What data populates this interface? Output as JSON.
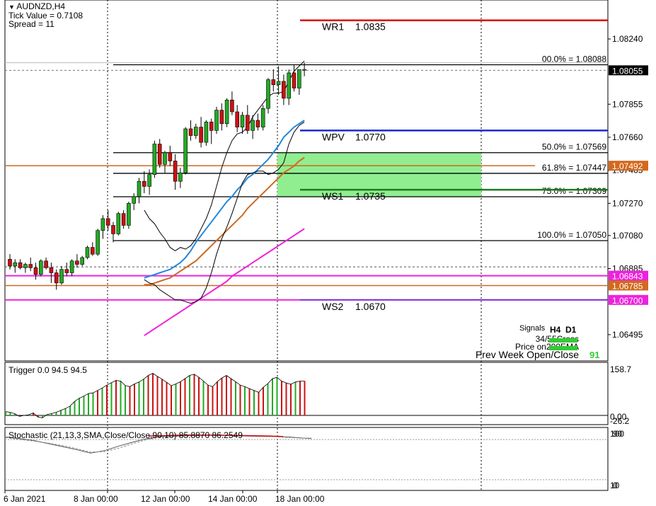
{
  "header": {
    "symbol": "AUDNZD,H4",
    "tick_value": "Tick Value = 0.7108",
    "spread": "Spread = 11"
  },
  "colors": {
    "bull": "#22aa22",
    "bear": "#cc1111",
    "pivot_r": "#dd0000",
    "pivot_p": "#1a2acc",
    "pivot_s": "#1d7a1d",
    "fib_zone": "#90ee90",
    "orange": "#cc6a22",
    "magenta": "#ee22dd",
    "ema_blue": "#2288dd",
    "price_tag": "#000000",
    "orange_tag": "#d2691e",
    "magenta_tag": "#ee22dd"
  },
  "price_axis": {
    "ylim": [
      1.0634,
      1.0847
    ],
    "ticks": [
      "1.08240",
      "1.07855",
      "1.07660",
      "1.07465",
      "1.07270",
      "1.07080",
      "1.06885",
      "1.06495"
    ],
    "tick_values": [
      1.0824,
      1.07855,
      1.0766,
      1.07465,
      1.0727,
      1.0708,
      1.06885,
      1.06495
    ],
    "tags": [
      {
        "label": "1.08055",
        "value": 1.08055,
        "color": "price_tag"
      },
      {
        "label": "1.07492",
        "value": 1.07492,
        "color": "orange_tag"
      },
      {
        "label": "1.06843",
        "value": 1.06843,
        "color": "magenta_tag"
      },
      {
        "label": "1.06785",
        "value": 1.06785,
        "color": "orange_tag"
      },
      {
        "label": "1.06700",
        "value": 1.067,
        "color": "magenta_tag"
      }
    ]
  },
  "pivots": [
    {
      "name": "WR1",
      "value": "1.0835",
      "level": 1.0835,
      "color": "pivot_r"
    },
    {
      "name": "WPV",
      "value": "1.0770",
      "level": 1.077,
      "color": "pivot_p"
    },
    {
      "name": "WS1",
      "value": "1.0735",
      "level": 1.0735,
      "color": "pivot_s"
    },
    {
      "name": "WS2",
      "value": "1.0670",
      "level": 1.067,
      "color": "pivot_p"
    }
  ],
  "fib_levels": [
    {
      "label": "00.0% = 1.08088",
      "level": 1.08088
    },
    {
      "label": "50.0% = 1.07569",
      "level": 1.07569
    },
    {
      "label": "61.8% = 1.07447",
      "level": 1.07447
    },
    {
      "label": "75.0% = 1.07309",
      "level": 1.07309
    },
    {
      "label": "100.0% = 1.07050",
      "level": 1.0705
    }
  ],
  "signals": {
    "title": "Signals",
    "col_h4": "H4",
    "col_d1": "D1",
    "rows": [
      {
        "label": "34/55Cross"
      },
      {
        "label": "Price on200EMA"
      },
      {
        "label": "Prev Week Open/Close",
        "value": "91"
      }
    ]
  },
  "trigger": {
    "label": "Trigger 0.0 94.5 94.5",
    "axis_top": "158.7",
    "axis_zero": "0.00",
    "axis_bottom": "-26.2",
    "ylim": [
      -26.2,
      158.7
    ],
    "values": [
      12,
      10,
      5,
      -3,
      0,
      2,
      8,
      -5,
      -8,
      3,
      6,
      10,
      16,
      22,
      30,
      45,
      55,
      62,
      70,
      72,
      80,
      88,
      97,
      105,
      112,
      110,
      96,
      92,
      101,
      107,
      116,
      128,
      135,
      125,
      116,
      106,
      95,
      101,
      108,
      118,
      128,
      132,
      122,
      110,
      97,
      92,
      108,
      120,
      128,
      118,
      108,
      97,
      92,
      86,
      80,
      74,
      90,
      102,
      118,
      122,
      110,
      104,
      100,
      107,
      110,
      110
    ],
    "colors": "gggrrgrrggggggggggggrgrgrggrrggrrrrrrgrrgrrgrrrrrrgrgrgrrgggrrrgrr"
  },
  "stochastic": {
    "label": "Stochastic (21,13,3,SMA,Close/Close,90,10) 85.8870 86.2549",
    "axis_top": "100",
    "axis_90": "90",
    "axis_10": "10",
    "axis_0": "0"
  },
  "time_axis": {
    "labels": [
      "6 Jan 2021",
      "8 Jan 00:00",
      "12 Jan 00:00",
      "14 Jan 00:00",
      "18 Jan 00:00"
    ]
  },
  "candles": [
    [
      1.0694,
      1.0697,
      1.0688,
      1.069
    ],
    [
      1.069,
      1.0694,
      1.0686,
      1.0692
    ],
    [
      1.0692,
      1.0694,
      1.0688,
      1.0689
    ],
    [
      1.0689,
      1.0692,
      1.0686,
      1.0691
    ],
    [
      1.0691,
      1.0695,
      1.0687,
      1.0689
    ],
    [
      1.0689,
      1.0692,
      1.0682,
      1.0685
    ],
    [
      1.0685,
      1.0694,
      1.0684,
      1.0693
    ],
    [
      1.0693,
      1.0695,
      1.0688,
      1.0689
    ],
    [
      1.0689,
      1.0692,
      1.068,
      1.0686
    ],
    [
      1.0686,
      1.0688,
      1.0676,
      1.068
    ],
    [
      1.068,
      1.069,
      1.0679,
      1.0688
    ],
    [
      1.0688,
      1.0692,
      1.0684,
      1.0686
    ],
    [
      1.0686,
      1.0694,
      1.0684,
      1.0693
    ],
    [
      1.0693,
      1.0697,
      1.0689,
      1.0691
    ],
    [
      1.0691,
      1.0696,
      1.069,
      1.0695
    ],
    [
      1.0695,
      1.0702,
      1.0694,
      1.0701
    ],
    [
      1.0701,
      1.0704,
      1.0696,
      1.0697
    ],
    [
      1.0697,
      1.0712,
      1.0696,
      1.0711
    ],
    [
      1.0711,
      1.072,
      1.0706,
      1.0718
    ],
    [
      1.0718,
      1.0723,
      1.0711,
      1.0714
    ],
    [
      1.0714,
      1.0716,
      1.0704,
      1.0709
    ],
    [
      1.0709,
      1.0722,
      1.0708,
      1.0721
    ],
    [
      1.0721,
      1.0723,
      1.0712,
      1.0714
    ],
    [
      1.0714,
      1.0728,
      1.0712,
      1.0727
    ],
    [
      1.0727,
      1.0733,
      1.0723,
      1.0731
    ],
    [
      1.0731,
      1.0742,
      1.0727,
      1.074
    ],
    [
      1.074,
      1.0746,
      1.0733,
      1.0737
    ],
    [
      1.0737,
      1.0747,
      1.0732,
      1.0744
    ],
    [
      1.0744,
      1.0764,
      1.0742,
      1.0762
    ],
    [
      1.0762,
      1.0765,
      1.0748,
      1.075
    ],
    [
      1.075,
      1.0758,
      1.0745,
      1.0757
    ],
    [
      1.0757,
      1.0761,
      1.0749,
      1.0752
    ],
    [
      1.0752,
      1.0756,
      1.0735,
      1.074
    ],
    [
      1.074,
      1.0748,
      1.0736,
      1.0745
    ],
    [
      1.0745,
      1.0772,
      1.0744,
      1.0771
    ],
    [
      1.0771,
      1.0776,
      1.0764,
      1.0767
    ],
    [
      1.0767,
      1.0774,
      1.0765,
      1.0772
    ],
    [
      1.0772,
      1.0778,
      1.076,
      1.0763
    ],
    [
      1.0763,
      1.0776,
      1.0761,
      1.0775
    ],
    [
      1.0775,
      1.0777,
      1.0762,
      1.077
    ],
    [
      1.077,
      1.0784,
      1.0768,
      1.0782
    ],
    [
      1.0782,
      1.0786,
      1.077,
      1.0774
    ],
    [
      1.0774,
      1.0789,
      1.0772,
      1.0788
    ],
    [
      1.0788,
      1.0793,
      1.0779,
      1.0781
    ],
    [
      1.0781,
      1.0785,
      1.0769,
      1.0772
    ],
    [
      1.0772,
      1.0781,
      1.0768,
      1.0779
    ],
    [
      1.0779,
      1.0785,
      1.0768,
      1.077
    ],
    [
      1.077,
      1.0779,
      1.0765,
      1.0776
    ],
    [
      1.0776,
      1.078,
      1.077,
      1.0772
    ],
    [
      1.0772,
      1.0785,
      1.077,
      1.0783
    ],
    [
      1.0783,
      1.0801,
      1.078,
      1.08
    ],
    [
      1.08,
      1.0806,
      1.0793,
      1.0797
    ],
    [
      1.0797,
      1.0808,
      1.0791,
      1.0799
    ],
    [
      1.0799,
      1.0803,
      1.0785,
      1.0789
    ],
    [
      1.0789,
      1.0806,
      1.0785,
      1.0804
    ],
    [
      1.0804,
      1.0809,
      1.0793,
      1.0795
    ],
    [
      1.0795,
      1.0806,
      1.0791,
      1.0806
    ],
    [
      1.0806,
      1.081,
      1.0802,
      1.0806
    ]
  ],
  "indicator_lines": {
    "bb_upper": [
      [
        1.0723,
        1.0718,
        1.0715,
        1.071
      ],
      [
        1.0706,
        1.0701,
        1.0699,
        1.0701
      ],
      [
        1.07,
        1.0702,
        1.0706,
        1.0712
      ],
      [
        1.0718,
        1.0726,
        1.0737,
        1.0748
      ],
      [
        1.0757,
        1.0764,
        1.0768,
        1.0769
      ],
      [
        1.0772,
        1.0778,
        1.0782,
        1.0786
      ],
      [
        1.079,
        1.0792,
        1.0792,
        1.0793
      ],
      [
        1.0799,
        1.0805,
        1.0808,
        1.0811
      ]
    ],
    "bb_lower": [
      [
        1.0682,
        1.068,
        1.0679,
        1.0676
      ],
      [
        1.0674,
        1.0672,
        1.067,
        1.067
      ],
      [
        1.0669,
        1.0668,
        1.0669,
        1.0671
      ],
      [
        1.0677,
        1.0686,
        1.0697,
        1.0706
      ],
      [
        1.0713,
        1.0721,
        1.073,
        1.0739
      ],
      [
        1.0744,
        1.0745,
        1.0746,
        1.0746
      ],
      [
        1.0744,
        1.0745,
        1.0747,
        1.0751
      ],
      [
        1.0762,
        1.0769,
        1.0773,
        1.0775
      ]
    ],
    "ema_blue": [
      [
        1.0683,
        1.0684,
        1.0685,
        1.0686
      ],
      [
        1.0687,
        1.0688,
        1.069,
        1.0692
      ],
      [
        1.0695,
        1.0699,
        1.0704,
        1.0708
      ],
      [
        1.0712,
        1.0716,
        1.072,
        1.0724
      ],
      [
        1.0728,
        1.0731,
        1.0735,
        1.0738
      ],
      [
        1.0742,
        1.0744,
        1.0747,
        1.075
      ],
      [
        1.0753,
        1.0757,
        1.0761,
        1.0766
      ],
      [
        1.0769,
        1.0772,
        1.0774,
        1.0776
      ]
    ],
    "ema_orange": [
      [
        1.0679,
        1.0679,
        1.068,
        1.0681
      ],
      [
        1.0682,
        1.0683,
        1.0685,
        1.0687
      ],
      [
        1.0689,
        1.0691,
        1.0693,
        1.0696
      ],
      [
        1.0699,
        1.0702,
        1.0705,
        1.0708
      ],
      [
        1.0711,
        1.0714,
        1.0717,
        1.072
      ],
      [
        1.0724,
        1.0727,
        1.073,
        1.0733
      ],
      [
        1.0736,
        1.0739,
        1.0742,
        1.0745
      ],
      [
        1.0747,
        1.0749,
        1.0752,
        1.0754
      ]
    ],
    "ema200_magenta": [
      [
        1.0649,
        1.0651,
        1.0653,
        1.0655
      ],
      [
        1.0657,
        1.0659,
        1.0661,
        1.0663
      ],
      [
        1.0665,
        1.0667,
        1.0669,
        1.0671
      ],
      [
        1.0673,
        1.0675,
        1.0677,
        1.0679
      ],
      [
        1.0681,
        1.0684,
        1.0686,
        1.0688
      ],
      [
        1.069,
        1.0692,
        1.0694,
        1.0696
      ],
      [
        1.0698,
        1.07,
        1.0702,
        1.0704
      ],
      [
        1.0706,
        1.0708,
        1.071,
        1.0712
      ]
    ]
  }
}
